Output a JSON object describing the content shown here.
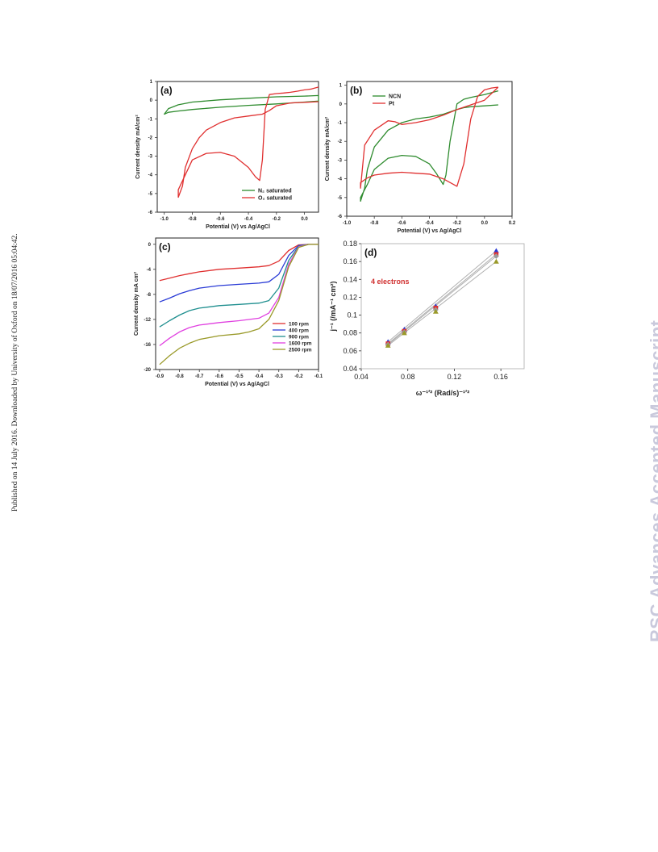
{
  "side_note": "Published on 14 July 2016. Downloaded by University of Oxford on 18/07/2016 05:04:42.",
  "watermark": "RSC Advances Accepted Manuscript",
  "colors": {
    "green": "#2e8b2e",
    "red": "#e03030",
    "blue": "#2a3bd6",
    "teal": "#1f8f8f",
    "magenta": "#e040e0",
    "olive": "#9a9a2a",
    "grey": "#9a9a9a",
    "label_red": "#d03030"
  },
  "chart_data": [
    {
      "panel": "(a)",
      "type": "line",
      "xlabel": "Potential (V) vs Ag/AgCl",
      "ylabel": "Current density mA/cm²",
      "xlim": [
        -1.05,
        0.1
      ],
      "ylim": [
        -6,
        1
      ],
      "xticks": [
        "-1.0",
        "-0.8",
        "-0.6",
        "-0.4",
        "-0.2",
        "0.0"
      ],
      "xtick_values": [
        -1.0,
        -0.8,
        -0.6,
        -0.4,
        -0.2,
        0.0
      ],
      "yticks": [
        "1",
        "0",
        "-1",
        "-2",
        "-3",
        "-4",
        "-5",
        "-6"
      ],
      "ytick_values": [
        1,
        0,
        -1,
        -2,
        -3,
        -4,
        -5,
        -6
      ],
      "legend": "bottom-right",
      "series": [
        {
          "name": "N₂ saturated",
          "color": "green",
          "closed": true,
          "x": [
            -1.0,
            -0.97,
            -0.9,
            -0.8,
            -0.6,
            -0.4,
            -0.2,
            0.0,
            0.1,
            0.1,
            0.0,
            -0.2,
            -0.4,
            -0.6,
            -0.8,
            -0.9,
            -0.97,
            -1.0
          ],
          "y": [
            -0.75,
            -0.45,
            -0.25,
            -0.1,
            0.02,
            0.1,
            0.18,
            0.22,
            0.25,
            -0.05,
            -0.1,
            -0.2,
            -0.28,
            -0.38,
            -0.5,
            -0.58,
            -0.65,
            -0.75
          ]
        },
        {
          "name": "O₂ saturated",
          "color": "red",
          "closed": false,
          "x": [
            0.1,
            0.05,
            0.0,
            -0.05,
            -0.1,
            -0.15,
            -0.2,
            -0.25,
            -0.28,
            -0.3,
            -0.32,
            -0.35,
            -0.4,
            -0.5,
            -0.6,
            -0.7,
            -0.8,
            -0.85,
            -0.9,
            -0.9,
            -0.87,
            -0.85,
            -0.8,
            -0.75,
            -0.7,
            -0.6,
            -0.5,
            -0.4,
            -0.3,
            -0.25,
            -0.2,
            -0.1,
            0.0,
            0.1
          ],
          "y": [
            0.7,
            0.6,
            0.55,
            0.48,
            0.42,
            0.38,
            0.35,
            0.3,
            -0.5,
            -3.2,
            -4.3,
            -4.1,
            -3.6,
            -3.0,
            -2.8,
            -2.85,
            -3.2,
            -4.0,
            -4.8,
            -5.2,
            -4.6,
            -3.6,
            -2.6,
            -2.0,
            -1.6,
            -1.2,
            -0.95,
            -0.85,
            -0.75,
            -0.55,
            -0.3,
            -0.15,
            -0.12,
            -0.08
          ]
        }
      ]
    },
    {
      "panel": "(b)",
      "type": "line",
      "xlabel": "Potential (V) vs Ag/AgCl",
      "ylabel": "Current density mA/cm²",
      "xlim": [
        -1.0,
        0.2
      ],
      "ylim": [
        -6,
        1.2
      ],
      "xticks": [
        "-1.0",
        "-0.8",
        "-0.6",
        "-0.4",
        "-0.2",
        "0.0",
        "0.2"
      ],
      "xtick_values": [
        -1.0,
        -0.8,
        -0.6,
        -0.4,
        -0.2,
        0.0,
        0.2
      ],
      "yticks": [
        "1",
        "0",
        "-1",
        "-2",
        "-3",
        "-4",
        "-5",
        "-6"
      ],
      "ytick_values": [
        1,
        0,
        -1,
        -2,
        -3,
        -4,
        -5,
        -6
      ],
      "legend": "top-left",
      "series": [
        {
          "name": "NCN",
          "color": "green",
          "closed": false,
          "x": [
            0.1,
            0.0,
            -0.1,
            -0.15,
            -0.2,
            -0.25,
            -0.28,
            -0.3,
            -0.35,
            -0.4,
            -0.5,
            -0.6,
            -0.7,
            -0.8,
            -0.85,
            -0.9,
            -0.9,
            -0.87,
            -0.85,
            -0.8,
            -0.7,
            -0.6,
            -0.5,
            -0.4,
            -0.3,
            -0.2,
            -0.15,
            -0.1,
            0.0,
            0.1
          ],
          "y": [
            0.7,
            0.5,
            0.35,
            0.25,
            0.0,
            -2.0,
            -3.8,
            -4.3,
            -3.7,
            -3.2,
            -2.8,
            -2.75,
            -2.9,
            -3.5,
            -4.3,
            -5.0,
            -5.2,
            -4.5,
            -3.5,
            -2.3,
            -1.4,
            -1.0,
            -0.8,
            -0.7,
            -0.55,
            -0.3,
            -0.2,
            -0.15,
            -0.1,
            -0.05
          ]
        },
        {
          "name": "Pt",
          "color": "red",
          "closed": false,
          "x": [
            0.1,
            0.05,
            0.0,
            -0.05,
            -0.1,
            -0.15,
            -0.2,
            -0.3,
            -0.4,
            -0.5,
            -0.6,
            -0.7,
            -0.8,
            -0.85,
            -0.9,
            -0.9,
            -0.87,
            -0.8,
            -0.7,
            -0.65,
            -0.6,
            -0.5,
            -0.4,
            -0.3,
            -0.2,
            -0.1,
            0.0,
            0.1
          ],
          "y": [
            0.9,
            0.85,
            0.75,
            0.4,
            -0.8,
            -3.2,
            -4.4,
            -4.0,
            -3.75,
            -3.7,
            -3.65,
            -3.7,
            -3.8,
            -3.95,
            -4.2,
            -4.5,
            -2.2,
            -1.4,
            -0.9,
            -0.95,
            -1.1,
            -1.0,
            -0.85,
            -0.6,
            -0.3,
            -0.05,
            0.2,
            0.9
          ]
        }
      ]
    },
    {
      "panel": "(c)",
      "type": "line",
      "xlabel": "Potential (V) vs Ag/AgCl",
      "ylabel": "Current density mA cm²",
      "xlim": [
        -0.92,
        -0.1
      ],
      "ylim": [
        -20,
        1
      ],
      "xticks": [
        "-0.9",
        "-0.8",
        "-0.7",
        "-0.6",
        "-0.5",
        "-0.4",
        "-0.3",
        "-0.2",
        "-0.1"
      ],
      "xtick_values": [
        -0.9,
        -0.8,
        -0.7,
        -0.6,
        -0.5,
        -0.4,
        -0.3,
        -0.2,
        -0.1
      ],
      "yticks": [
        "0",
        "-4",
        "-8",
        "-12",
        "-16",
        "-20"
      ],
      "ytick_values": [
        0,
        -4,
        -8,
        -12,
        -16,
        -20
      ],
      "legend": "bottom-right",
      "series": [
        {
          "name": "100 rpm",
          "color": "red",
          "x": [
            -0.9,
            -0.85,
            -0.8,
            -0.75,
            -0.7,
            -0.6,
            -0.5,
            -0.4,
            -0.35,
            -0.3,
            -0.25,
            -0.2,
            -0.15,
            -0.1
          ],
          "y": [
            -5.8,
            -5.4,
            -5.0,
            -4.7,
            -4.4,
            -4.0,
            -3.8,
            -3.6,
            -3.4,
            -2.7,
            -1.0,
            -0.1,
            0.0,
            0.0
          ]
        },
        {
          "name": "400 rpm",
          "color": "blue",
          "x": [
            -0.9,
            -0.85,
            -0.8,
            -0.75,
            -0.7,
            -0.6,
            -0.5,
            -0.4,
            -0.35,
            -0.3,
            -0.25,
            -0.2,
            -0.15,
            -0.1
          ],
          "y": [
            -9.2,
            -8.6,
            -7.9,
            -7.4,
            -7.0,
            -6.6,
            -6.4,
            -6.2,
            -6.0,
            -4.8,
            -1.8,
            -0.2,
            0.0,
            0.0
          ]
        },
        {
          "name": "900 rpm",
          "color": "teal",
          "x": [
            -0.9,
            -0.85,
            -0.8,
            -0.75,
            -0.7,
            -0.6,
            -0.5,
            -0.4,
            -0.35,
            -0.3,
            -0.25,
            -0.2,
            -0.15,
            -0.1
          ],
          "y": [
            -13.2,
            -12.2,
            -11.3,
            -10.6,
            -10.2,
            -9.8,
            -9.6,
            -9.4,
            -9.0,
            -7.0,
            -2.6,
            -0.3,
            0.0,
            0.0
          ]
        },
        {
          "name": "1600 rpm",
          "color": "magenta",
          "x": [
            -0.9,
            -0.85,
            -0.8,
            -0.75,
            -0.7,
            -0.6,
            -0.5,
            -0.4,
            -0.35,
            -0.3,
            -0.25,
            -0.2,
            -0.15,
            -0.1
          ],
          "y": [
            -16.2,
            -15.0,
            -14.0,
            -13.3,
            -12.9,
            -12.5,
            -12.2,
            -11.8,
            -11.0,
            -8.5,
            -3.2,
            -0.4,
            0.0,
            0.0
          ]
        },
        {
          "name": "2500 rpm",
          "color": "olive",
          "x": [
            -0.9,
            -0.85,
            -0.8,
            -0.75,
            -0.7,
            -0.6,
            -0.5,
            -0.45,
            -0.4,
            -0.35,
            -0.3,
            -0.25,
            -0.2,
            -0.15,
            -0.1
          ],
          "y": [
            -19.2,
            -17.8,
            -16.6,
            -15.8,
            -15.2,
            -14.6,
            -14.3,
            -14.0,
            -13.5,
            -12.0,
            -9.0,
            -3.6,
            -0.5,
            0.0,
            0.0
          ]
        }
      ]
    },
    {
      "panel": "(d)",
      "type": "scatter",
      "annotation": "4 electrons",
      "xlabel": "ω⁻¹′² (Rad/s)⁻¹′²",
      "ylabel": "j⁻¹ (/mA⁻¹ cm²)",
      "xlim": [
        0.04,
        0.18
      ],
      "ylim": [
        0.04,
        0.18
      ],
      "xticks": [
        "0.04",
        "0.08",
        "0.12",
        "0.16"
      ],
      "xtick_values": [
        0.04,
        0.08,
        0.12,
        0.16
      ],
      "yticks": [
        "0.18",
        "0.16",
        "0.14",
        "0.12",
        "0.1",
        "0.08",
        "0.06",
        "0.04"
      ],
      "ytick_values": [
        0.18,
        0.16,
        0.14,
        0.12,
        0.1,
        0.08,
        0.06,
        0.04
      ],
      "series": [
        {
          "color": "blue",
          "marker": "triangle",
          "x": [
            0.063,
            0.077,
            0.104,
            0.156
          ],
          "y": [
            0.07,
            0.084,
            0.11,
            0.172
          ]
        },
        {
          "color": "red",
          "marker": "square",
          "x": [
            0.063,
            0.077,
            0.104,
            0.156
          ],
          "y": [
            0.068,
            0.082,
            0.108,
            0.168
          ]
        },
        {
          "color": "grey",
          "marker": "diamond",
          "x": [
            0.063,
            0.077,
            0.104,
            0.156
          ],
          "y": [
            0.067,
            0.081,
            0.106,
            0.166
          ]
        },
        {
          "color": "olive",
          "marker": "triangle",
          "x": [
            0.063,
            0.077,
            0.104,
            0.156
          ],
          "y": [
            0.066,
            0.08,
            0.104,
            0.16
          ]
        }
      ]
    }
  ]
}
